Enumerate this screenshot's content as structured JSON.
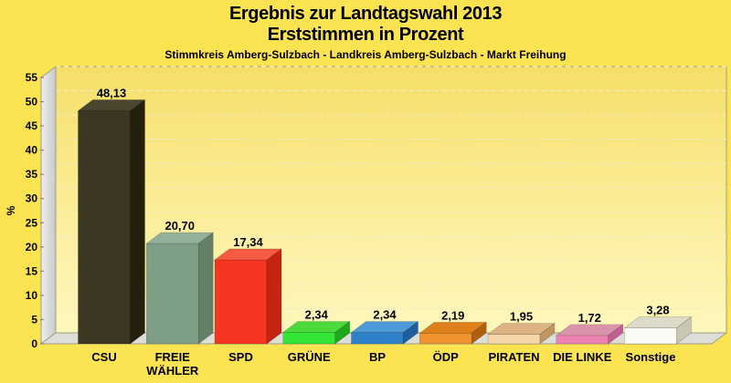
{
  "header": {
    "title_line1": "Ergebnis zur Landtagswahl 2013",
    "title_line2": "Erststimmen in Prozent",
    "subtitle": "Stimmkreis Amberg-Sulzbach - Landkreis Amberg-Sulzbach - Markt Freihung"
  },
  "chart_data": {
    "type": "bar",
    "style": "3d-column",
    "title": "Ergebnis zur Landtagswahl 2013 - Erststimmen in Prozent",
    "subtitle": "Stimmkreis Amberg-Sulzbach - Landkreis Amberg-Sulzbach - Markt Freihung",
    "xlabel": "",
    "ylabel": "%",
    "ylim": [
      0,
      55
    ],
    "ytick_step": 5,
    "grid": "horizontal-dashed",
    "legend": "none",
    "categories": [
      "CSU",
      "FREIE WÄHLER",
      "SPD",
      "GRÜNE",
      "BP",
      "ÖDP",
      "PIRATEN",
      "DIE LINKE",
      "Sonstige"
    ],
    "values": [
      48.13,
      20.7,
      17.34,
      2.34,
      2.34,
      2.19,
      1.95,
      1.72,
      3.28
    ],
    "bars": [
      {
        "party": "CSU",
        "lines": [
          "CSU"
        ],
        "value": 48.13,
        "label": "48,13",
        "front": "#3B3722",
        "top": "#4B4630",
        "side": "#23200E"
      },
      {
        "party": "FREIE WÄHLER",
        "lines": [
          "FREIE",
          "WÄHLER"
        ],
        "value": 20.7,
        "label": "20,70",
        "front": "#7E9E85",
        "top": "#93B098",
        "side": "#637F66"
      },
      {
        "party": "SPD",
        "lines": [
          "SPD"
        ],
        "value": 17.34,
        "label": "17,34",
        "front": "#F53620",
        "top": "#F75C42",
        "side": "#C42512"
      },
      {
        "party": "GRÜNE",
        "lines": [
          "GRÜNE"
        ],
        "value": 2.34,
        "label": "2,34",
        "front": "#33E535",
        "top": "#4BD93B",
        "side": "#1FA81C"
      },
      {
        "party": "BP",
        "lines": [
          "BP"
        ],
        "value": 2.34,
        "label": "2,34",
        "front": "#2E81C9",
        "top": "#4C9AD8",
        "side": "#1E5E9E"
      },
      {
        "party": "ÖDP",
        "lines": [
          "ÖDP"
        ],
        "value": 2.19,
        "label": "2,19",
        "front": "#F0922F",
        "top": "#DE8019",
        "side": "#AE5F10"
      },
      {
        "party": "PIRATEN",
        "lines": [
          "PIRATEN"
        ],
        "value": 1.95,
        "label": "1,95",
        "front": "#F4D6AA",
        "top": "#DCB483",
        "side": "#C09762"
      },
      {
        "party": "DIE LINKE",
        "lines": [
          "DIE LINKE"
        ],
        "value": 1.72,
        "label": "1,72",
        "front": "#EC82B4",
        "top": "#DA93AB",
        "side": "#C25F93"
      },
      {
        "party": "Sonstige",
        "lines": [
          "Sonstige"
        ],
        "value": 3.28,
        "label": "3,28",
        "front": "#FBFBF6",
        "top": "#DEDBC8",
        "side": "#C9C6B4"
      }
    ],
    "colors": {
      "page_bg": "#FCE351",
      "wall_grad_top": "#F6DF68",
      "wall_grad_mid": "#FBEF9E",
      "wall_grad_bottom": "#FEF7BC",
      "wall_border": "#9E9C88",
      "left_wall": "#C9C9C9",
      "left_wall_light": "#EFEFEF",
      "floor": "#DEDED8",
      "gridline": "#EFEBD2",
      "tick": "#8A8876",
      "text": "#000000"
    }
  }
}
